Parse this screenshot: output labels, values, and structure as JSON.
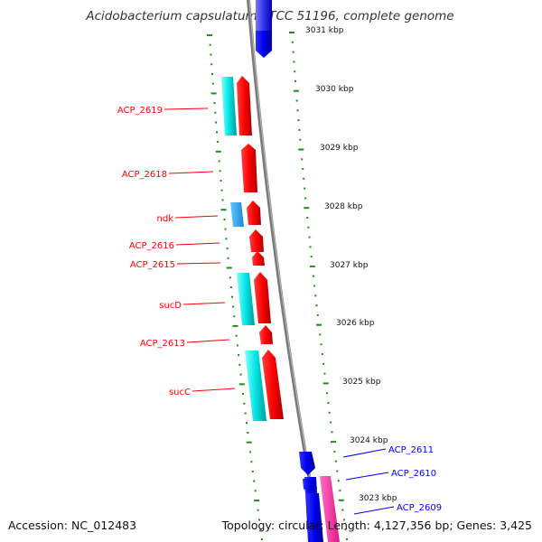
{
  "title": "Acidobacterium capsulatum ATCC 51196, complete genome",
  "accession": "Accession: NC_012483",
  "summary": "Topology: circular; Length: 4,127,356 bp; Genes: 3,425",
  "colors": {
    "forward_strand": "#ff0000",
    "reverse_strand": "#0000ee",
    "forward_feature": "#00e5e5",
    "reverse_feature": "#1ea0f0",
    "pink_feature": "#ff33aa",
    "backbone": "#888888",
    "tick": "#1f8a1f"
  },
  "ruler": [
    {
      "label": "3031 kbp"
    },
    {
      "label": "3030 kbp"
    },
    {
      "label": "3029 kbp"
    },
    {
      "label": "3028 kbp"
    },
    {
      "label": "3027 kbp"
    },
    {
      "label": "3026 kbp"
    },
    {
      "label": "3025 kbp"
    },
    {
      "label": "3024 kbp"
    },
    {
      "label": "3023 kbp"
    }
  ],
  "genes": [
    {
      "label": "ACP_2619",
      "strand": "forward"
    },
    {
      "label": "ACP_2618",
      "strand": "forward"
    },
    {
      "label": "ndk",
      "strand": "forward"
    },
    {
      "label": "ACP_2616",
      "strand": "forward"
    },
    {
      "label": "ACP_2615",
      "strand": "forward"
    },
    {
      "label": "sucD",
      "strand": "forward"
    },
    {
      "label": "ACP_2613",
      "strand": "forward"
    },
    {
      "label": "sucC",
      "strand": "forward"
    },
    {
      "label": "ACP_2611",
      "strand": "reverse"
    },
    {
      "label": "ACP_2610",
      "strand": "reverse"
    },
    {
      "label": "ACP_2609",
      "strand": "reverse"
    }
  ]
}
